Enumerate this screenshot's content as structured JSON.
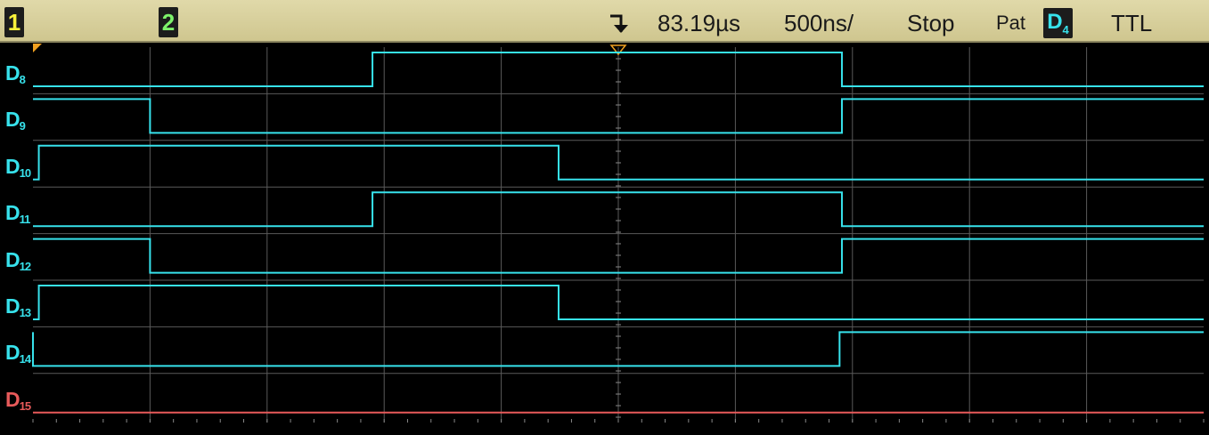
{
  "status": {
    "ch1_label": "1",
    "ch2_label": "2",
    "time_offset": "83.19µs",
    "time_base": "500ns/",
    "run_state": "Stop",
    "trigger_mode": "Pat",
    "trigger_source_letter": "D",
    "trigger_source_index": "4",
    "trigger_level": "TTL"
  },
  "colors": {
    "digital_trace": "#37e2ec",
    "d15_trace": "#e85a5a",
    "grid": "#5a5a5a",
    "marker": "#f0a020"
  },
  "channels": [
    {
      "letter": "D",
      "index": "8",
      "initial": 0,
      "transitions": [
        2.9,
        6.91
      ]
    },
    {
      "letter": "D",
      "index": "9",
      "initial": 1,
      "transitions": [
        1.0,
        6.91
      ]
    },
    {
      "letter": "D",
      "index": "10",
      "initial": 0,
      "transitions": [
        0.05,
        4.49
      ]
    },
    {
      "letter": "D",
      "index": "11",
      "initial": 0,
      "transitions": [
        2.9,
        6.91
      ]
    },
    {
      "letter": "D",
      "index": "12",
      "initial": 1,
      "transitions": [
        1.0,
        6.91
      ]
    },
    {
      "letter": "D",
      "index": "13",
      "initial": 0,
      "transitions": [
        0.05,
        4.49
      ]
    },
    {
      "letter": "D",
      "index": "14",
      "initial": 1,
      "transitions": [
        0.0,
        6.89
      ]
    },
    {
      "letter": "D",
      "index": "15",
      "initial": 0,
      "transitions": []
    }
  ]
}
